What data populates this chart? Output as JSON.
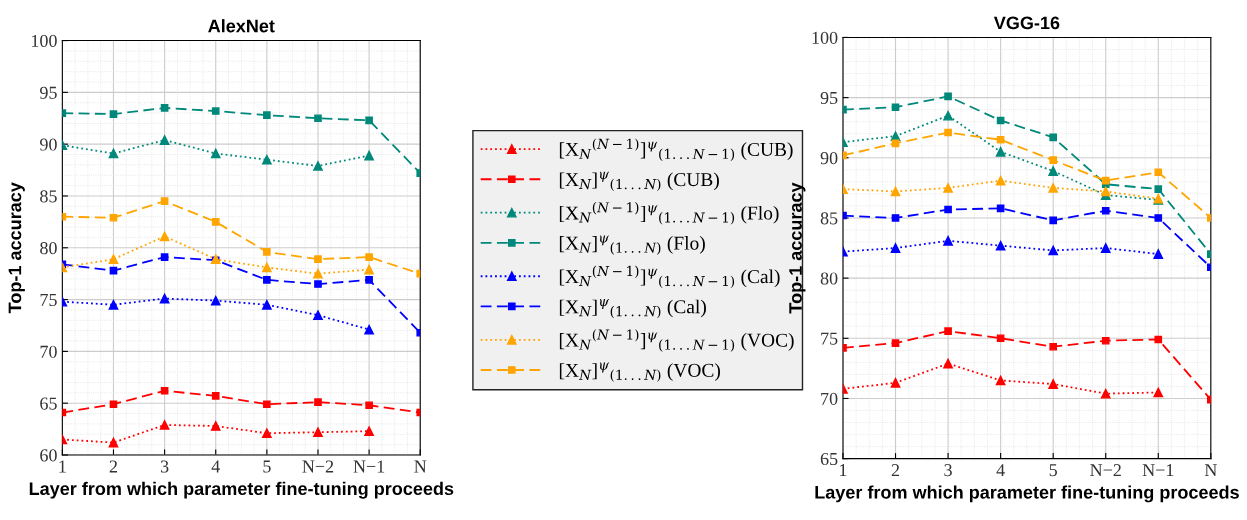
{
  "chart_data": [
    {
      "type": "line",
      "title": "AlexNet",
      "xlabel": "Layer from which parameter fine-tuning proceeds",
      "ylabel": "Top-1 accuracy",
      "categories": [
        "1",
        "2",
        "3",
        "4",
        "5",
        "N−2",
        "N−1",
        "N"
      ],
      "ylim": [
        60,
        100
      ],
      "yticks": [
        60,
        65,
        70,
        75,
        80,
        85,
        90,
        95,
        100
      ],
      "grid": true,
      "legend": "right",
      "series": [
        {
          "name": "[X$_{N}$$^{(N−1)}$]$^{ψ}$$_{(1...N−1)}$ (CUB)",
          "color": "#ff0000",
          "marker": "triangle",
          "line_style": "dotted",
          "values": [
            61.5,
            61.2,
            62.9,
            62.8,
            62.1,
            62.2,
            62.3,
            null
          ]
        },
        {
          "name": "[X$_{N}$]$^{ψ}$$_{(1...N)}$ (CUB)",
          "color": "#ff0000",
          "marker": "square",
          "line_style": "dashed",
          "values": [
            64.1,
            64.9,
            66.2,
            65.7,
            64.9,
            65.1,
            64.8,
            64.1
          ]
        },
        {
          "name": "[X$_{N}$$^{(N−1)}$]$^{ψ}$$_{(1...N−1)}$ (Flo)",
          "color": "#00897b",
          "marker": "triangle",
          "line_style": "dotted",
          "values": [
            89.9,
            89.1,
            90.4,
            89.1,
            88.5,
            87.9,
            88.9,
            null
          ]
        },
        {
          "name": "[X$_{N}$]$^{ψ}$$_{(1...N)}$ (Flo)",
          "color": "#00897b",
          "marker": "square",
          "line_style": "dashed",
          "values": [
            93.0,
            92.9,
            93.5,
            93.2,
            92.8,
            92.5,
            92.3,
            87.2
          ]
        },
        {
          "name": "[X$_{N}$$^{(N−1)}$]$^{ψ}$$_{(1...N−1)}$ (Cal)",
          "color": "#0000ff",
          "marker": "triangle",
          "line_style": "dotted",
          "values": [
            74.8,
            74.5,
            75.1,
            74.9,
            74.5,
            73.5,
            72.1,
            null
          ]
        },
        {
          "name": "[X$_{N}$]$^{ψ}$$_{(1...N)}$ (Cal)",
          "color": "#0000ff",
          "marker": "square",
          "line_style": "dashed",
          "values": [
            78.4,
            77.8,
            79.1,
            78.8,
            76.9,
            76.5,
            76.9,
            71.8
          ]
        },
        {
          "name": "[X$_{N}$$^{(N−1)}$]$^{ψ}$$_{(1...N−1)}$ (VOC)",
          "color": "#ffa500",
          "marker": "triangle",
          "line_style": "dotted",
          "values": [
            78.1,
            78.9,
            81.1,
            78.9,
            78.1,
            77.5,
            77.9,
            null
          ]
        },
        {
          "name": "[X$_{N}$]$^{ψ}$$_{(1...N)}$ (VOC)",
          "color": "#ffa500",
          "marker": "square",
          "line_style": "dashed",
          "values": [
            83.0,
            82.9,
            84.5,
            82.5,
            79.6,
            78.9,
            79.1,
            77.5
          ]
        }
      ]
    },
    {
      "type": "line",
      "title": "VGG-16",
      "xlabel": "Layer from which parameter fine-tuning proceeds",
      "ylabel": "Top-1 accuracy",
      "categories": [
        "1",
        "2",
        "3",
        "4",
        "5",
        "N−2",
        "N−1",
        "N"
      ],
      "ylim": [
        65,
        100
      ],
      "yticks": [
        65,
        70,
        75,
        80,
        85,
        90,
        95,
        100
      ],
      "grid": true,
      "series": [
        {
          "color": "#ff0000",
          "marker": "triangle",
          "line_style": "dotted",
          "values": [
            70.8,
            71.3,
            72.9,
            71.5,
            71.2,
            70.4,
            70.5,
            null
          ]
        },
        {
          "color": "#ff0000",
          "marker": "square",
          "line_style": "dashed",
          "values": [
            74.2,
            74.6,
            75.6,
            75.0,
            74.3,
            74.8,
            74.9,
            69.9
          ]
        },
        {
          "color": "#00897b",
          "marker": "triangle",
          "line_style": "dotted",
          "values": [
            91.3,
            91.8,
            93.5,
            90.5,
            88.9,
            86.9,
            86.5,
            null
          ]
        },
        {
          "color": "#00897b",
          "marker": "square",
          "line_style": "dashed",
          "values": [
            94.0,
            94.2,
            95.1,
            93.1,
            91.7,
            87.8,
            87.4,
            82.0
          ]
        },
        {
          "color": "#0000ff",
          "marker": "triangle",
          "line_style": "dotted",
          "values": [
            82.2,
            82.5,
            83.1,
            82.7,
            82.3,
            82.5,
            82.0,
            null
          ]
        },
        {
          "color": "#0000ff",
          "marker": "square",
          "line_style": "dashed",
          "values": [
            85.2,
            85.0,
            85.7,
            85.8,
            84.8,
            85.6,
            85.0,
            80.9
          ]
        },
        {
          "color": "#ffa500",
          "marker": "triangle",
          "line_style": "dotted",
          "values": [
            87.4,
            87.2,
            87.5,
            88.1,
            87.5,
            87.2,
            86.6,
            null
          ]
        },
        {
          "color": "#ffa500",
          "marker": "square",
          "line_style": "dashed",
          "values": [
            90.2,
            91.2,
            92.1,
            91.5,
            89.8,
            88.1,
            88.8,
            85.0
          ]
        }
      ]
    }
  ]
}
